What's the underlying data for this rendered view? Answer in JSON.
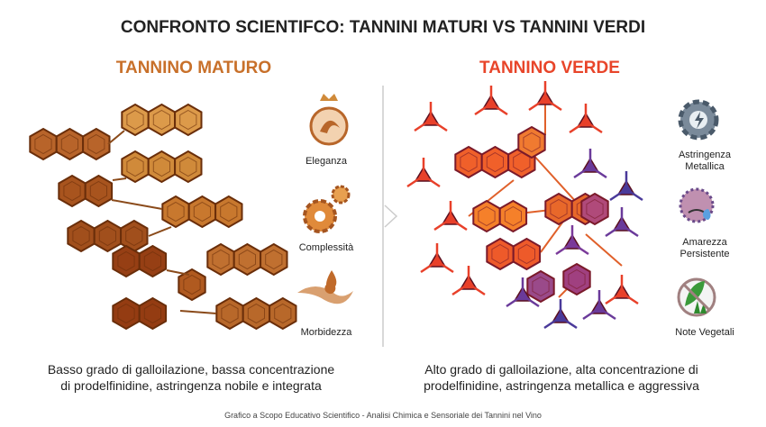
{
  "title": "CONFRONTO SCIENTIFCO: TANNINI MATURI VS TANNINI VERDI",
  "left": {
    "heading": "TANNINO MATURO",
    "features": [
      [
        "Eleganza"
      ],
      [
        "Complessità"
      ],
      [
        "Morbidezza"
      ]
    ],
    "description": [
      "Basso grado di galloilazione, bassa concentrazione",
      "di prodelfinidine, astringenza nobile e integrata"
    ]
  },
  "right": {
    "heading": "TANNINO VERDE",
    "features": [
      [
        "Astringenza",
        "Metallica"
      ],
      [
        "Amarezza",
        "Persistente"
      ],
      [
        "Note Vegetali"
      ]
    ],
    "description": [
      "Alto grado di galloilazione, alta concentrazione di",
      "prodelfinidine, astringenza metallica e aggressiva"
    ]
  },
  "footer": "Grafico a Scopo Educativo Scientifico - Analisi Chimica e Sensoriale dei Tannini nel Vino"
}
